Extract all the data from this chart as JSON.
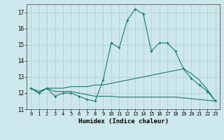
{
  "title": "",
  "xlabel": "Humidex (Indice chaleur)",
  "xlim": [
    -0.5,
    23.5
  ],
  "ylim": [
    11,
    17.5
  ],
  "yticks": [
    11,
    12,
    13,
    14,
    15,
    16,
    17
  ],
  "xticks": [
    0,
    1,
    2,
    3,
    4,
    5,
    6,
    7,
    8,
    9,
    10,
    11,
    12,
    13,
    14,
    15,
    16,
    17,
    18,
    19,
    20,
    21,
    22,
    23
  ],
  "bg_color": "#cde8ec",
  "grid_color": "#a8cdd4",
  "line_color": "#1a7a6a",
  "lines": [
    {
      "x": [
        0,
        1,
        2,
        3,
        4,
        5,
        6,
        7,
        8,
        9,
        10,
        11,
        12,
        13,
        14,
        15,
        16,
        17,
        18,
        19,
        20,
        21,
        22,
        23
      ],
      "y": [
        12.3,
        12.0,
        12.3,
        11.8,
        12.0,
        12.0,
        11.8,
        11.6,
        11.5,
        12.8,
        15.1,
        14.8,
        16.5,
        17.2,
        16.9,
        14.6,
        15.1,
        15.1,
        14.6,
        13.5,
        12.9,
        12.5,
        12.1,
        11.5
      ],
      "marker": "+"
    },
    {
      "x": [
        0,
        1,
        2,
        3,
        4,
        5,
        6,
        7,
        8,
        9,
        10,
        11,
        12,
        13,
        14,
        15,
        16,
        17,
        18,
        19,
        20,
        21,
        22,
        23
      ],
      "y": [
        12.3,
        12.1,
        12.3,
        12.3,
        12.3,
        12.4,
        12.4,
        12.4,
        12.5,
        12.5,
        12.6,
        12.7,
        12.8,
        12.9,
        13.0,
        13.1,
        13.2,
        13.3,
        13.4,
        13.5,
        13.2,
        12.8,
        12.2,
        11.5
      ],
      "marker": null
    },
    {
      "x": [
        0,
        1,
        2,
        3,
        4,
        5,
        6,
        7,
        8,
        9,
        10,
        11,
        12,
        13,
        14,
        15,
        16,
        17,
        18,
        19,
        20,
        21,
        22,
        23
      ],
      "y": [
        12.3,
        12.0,
        12.3,
        12.1,
        12.1,
        12.1,
        12.0,
        11.9,
        11.8,
        11.8,
        11.8,
        11.75,
        11.75,
        11.75,
        11.75,
        11.75,
        11.75,
        11.75,
        11.75,
        11.7,
        11.65,
        11.6,
        11.55,
        11.5
      ],
      "marker": null
    }
  ]
}
